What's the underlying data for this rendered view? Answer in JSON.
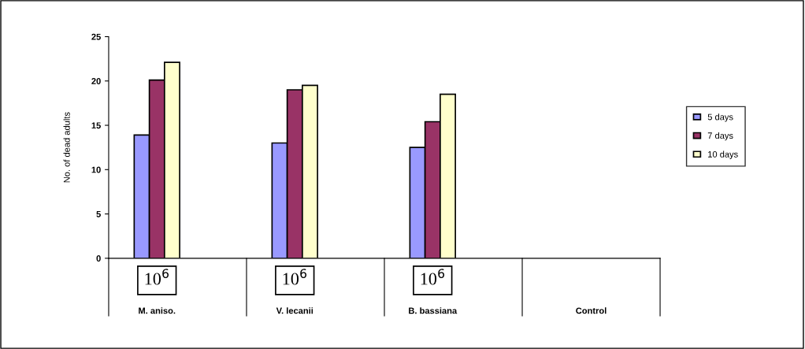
{
  "chart_data": {
    "type": "bar",
    "ylabel": "No. of dead adults",
    "categories": [
      "M. aniso.",
      "V. lecanii",
      "B. bassiana",
      "Control"
    ],
    "series": [
      {
        "name": "5 days",
        "color": "#9999ff",
        "values": [
          13.9,
          13.0,
          12.5,
          null
        ]
      },
      {
        "name": "7 days",
        "color": "#993366",
        "values": [
          20.1,
          19.0,
          15.4,
          null
        ]
      },
      {
        "name": "10 days",
        "color": "#ffffcc",
        "values": [
          22.1,
          19.5,
          18.5,
          null
        ]
      }
    ],
    "ylim": [
      0,
      25
    ],
    "yticks": [
      0,
      5,
      10,
      15,
      20,
      25
    ],
    "annotations": [
      "10$^{6}$",
      "10$^{6}$",
      "10$^{6}$"
    ],
    "grid": false,
    "legend": "right"
  }
}
